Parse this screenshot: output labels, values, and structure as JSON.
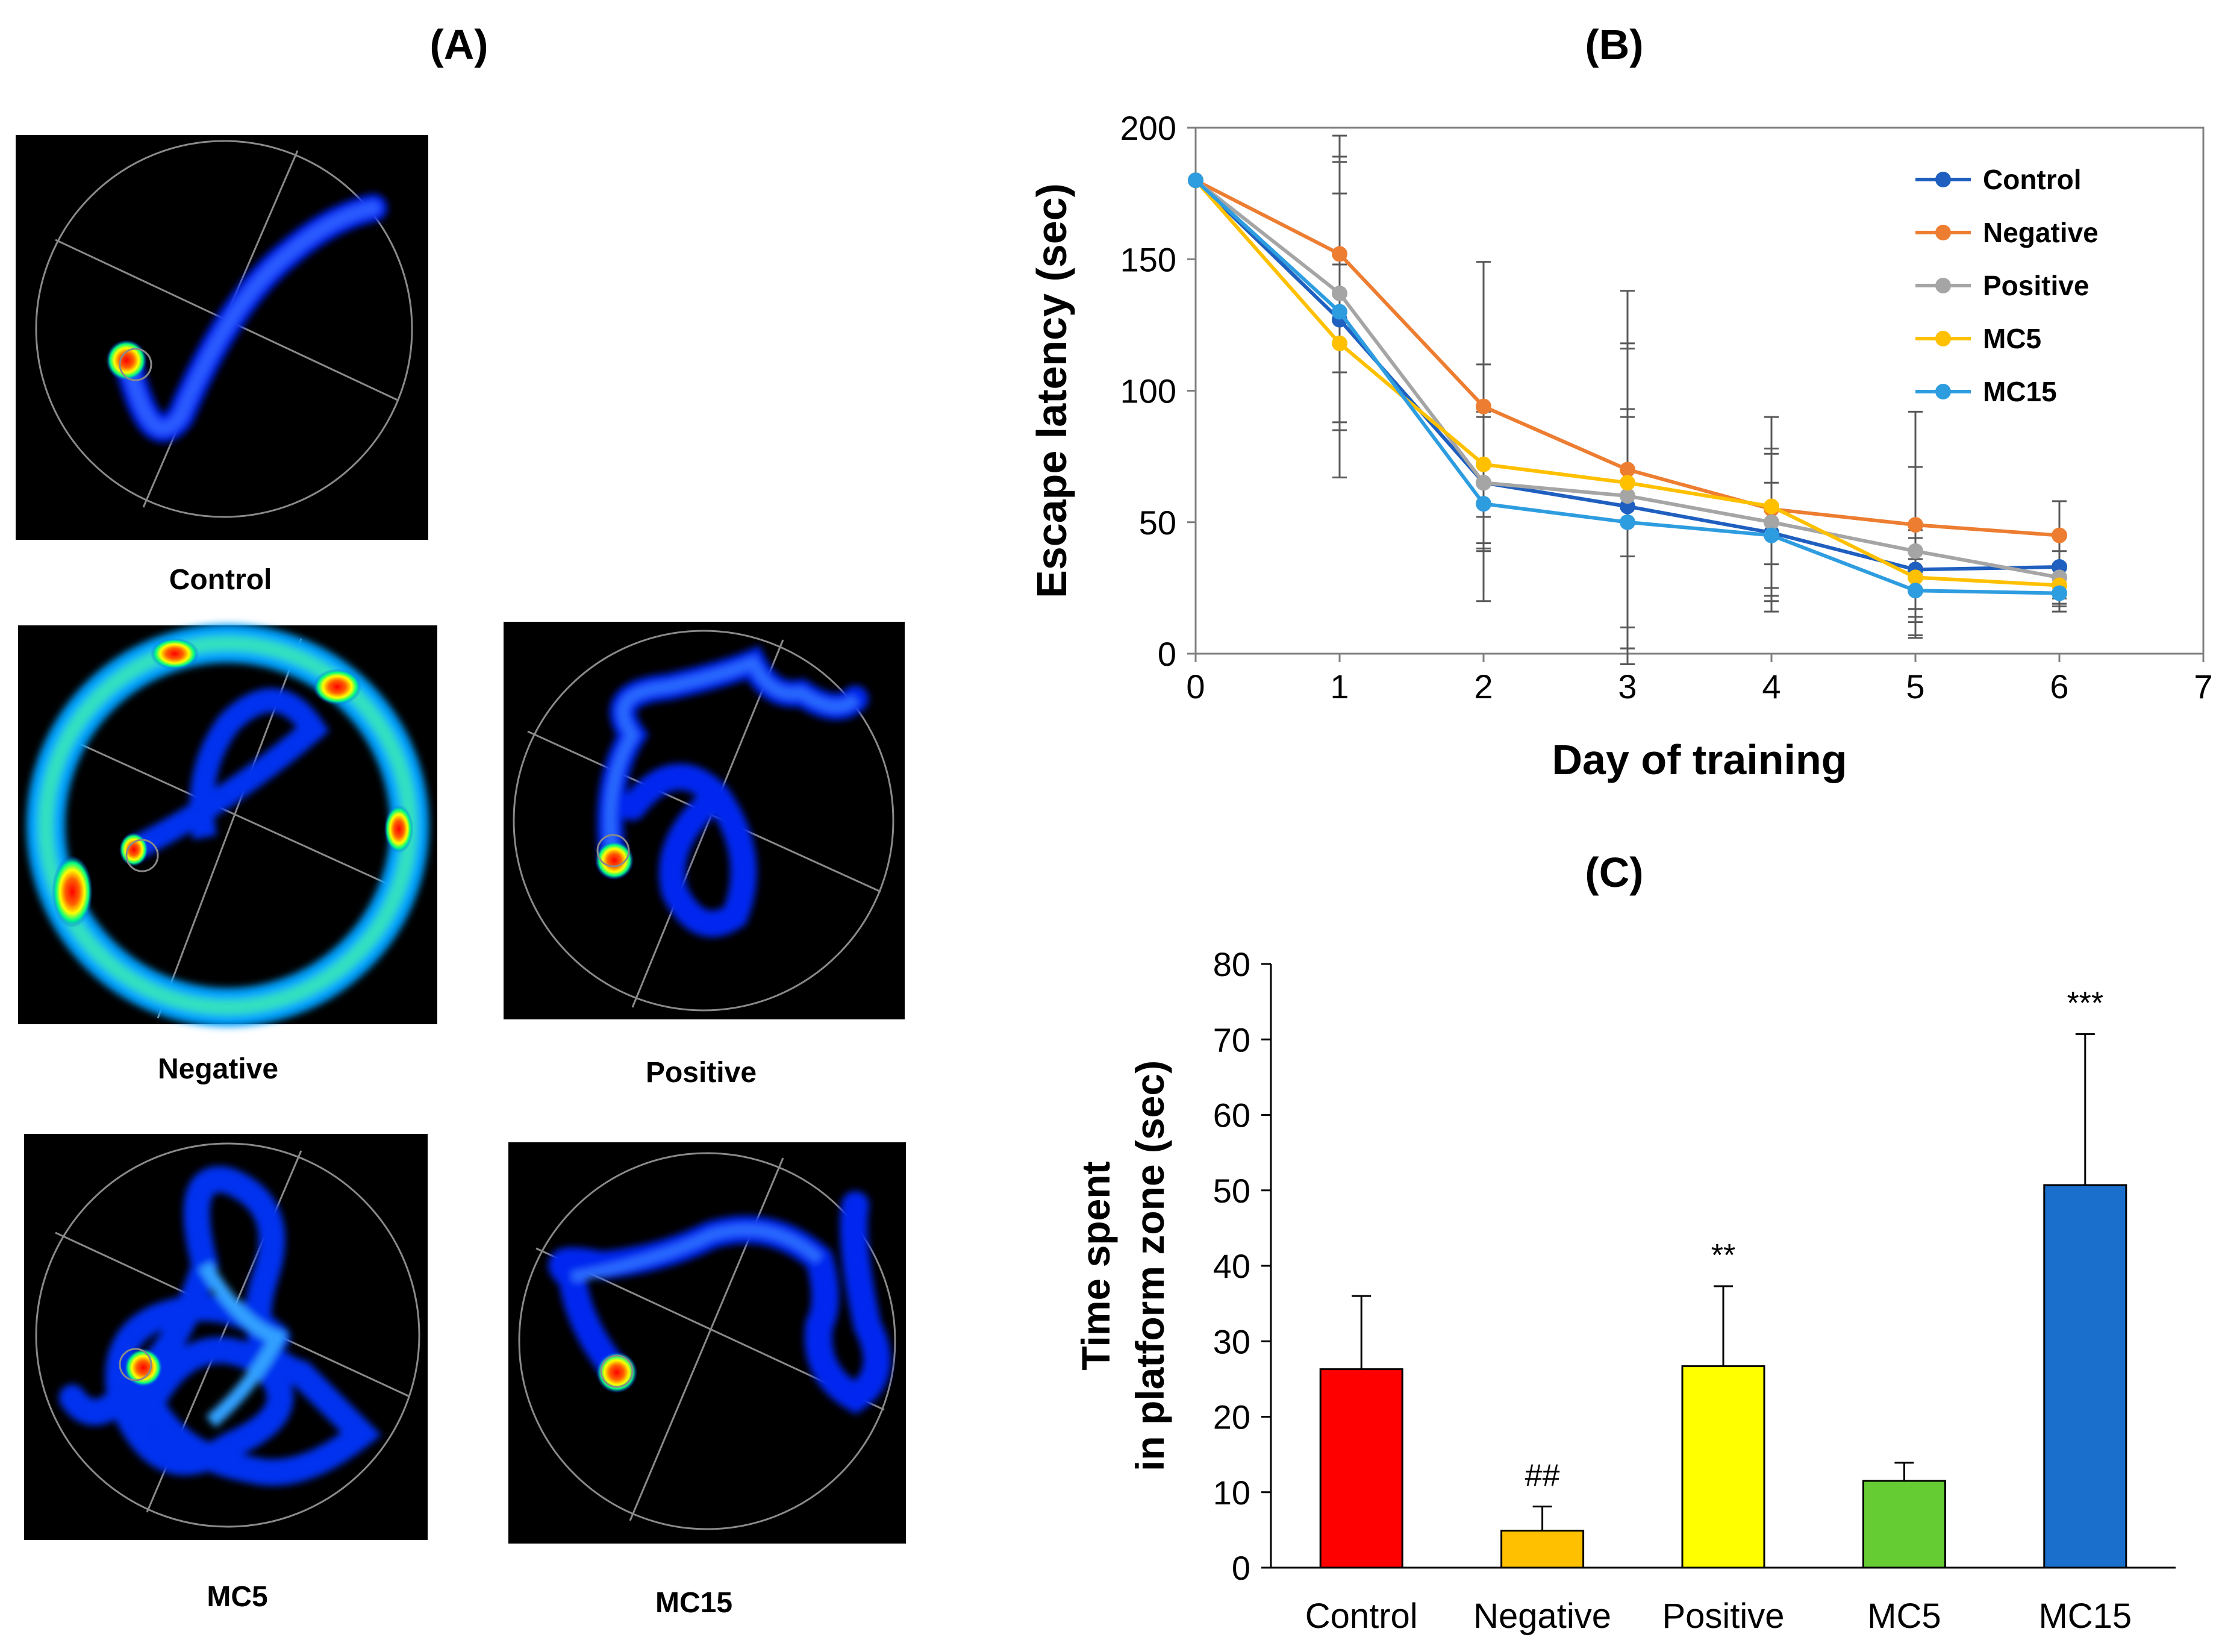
{
  "panel_labels": {
    "a": "(A)",
    "b": "(B)",
    "c": "(C)"
  },
  "heatmaps": [
    {
      "label": "Control",
      "pattern": "control"
    },
    {
      "label": "Negative",
      "pattern": "negative"
    },
    {
      "label": "Positive",
      "pattern": "positive"
    },
    {
      "label": "MC5",
      "pattern": "mc5"
    },
    {
      "label": "MC15",
      "pattern": "mc15"
    }
  ],
  "chart_data": [
    {
      "type": "line",
      "xlabel": "Day of training",
      "ylabel": "Escape latency (sec)",
      "x": [
        0,
        1,
        2,
        3,
        4,
        5,
        6
      ],
      "xlim": [
        0,
        7
      ],
      "ylim": [
        0,
        200
      ],
      "xticks": [
        "0",
        "1",
        "2",
        "3",
        "4",
        "5",
        "6",
        "7"
      ],
      "yticks": [
        "0",
        "50",
        "100",
        "150",
        "200"
      ],
      "legend_position": "top-right",
      "series": [
        {
          "name": "Control",
          "color": "#1f5fbf",
          "values": [
            180,
            127,
            65,
            56,
            46,
            32,
            33
          ],
          "errors": [
            0,
            60,
            45,
            60,
            30,
            15,
            12
          ]
        },
        {
          "name": "Negative",
          "color": "#ed7d31",
          "values": [
            180,
            152,
            94,
            70,
            55,
            49,
            45
          ],
          "errors": [
            0,
            45,
            55,
            68,
            35,
            43,
            13
          ]
        },
        {
          "name": "Positive",
          "color": "#a5a5a5",
          "values": [
            180,
            137,
            65,
            60,
            50,
            39,
            29
          ],
          "errors": [
            0,
            52,
            25,
            58,
            28,
            32,
            10
          ]
        },
        {
          "name": "MC5",
          "color": "#ffc000",
          "values": [
            180,
            118,
            72,
            65,
            56,
            29,
            26
          ],
          "errors": [
            0,
            30,
            20,
            28,
            22,
            15,
            8
          ]
        },
        {
          "name": "MC15",
          "color": "#2e9de0",
          "values": [
            180,
            130,
            57,
            50,
            45,
            24,
            23
          ],
          "errors": [
            0,
            45,
            15,
            40,
            20,
            12,
            7
          ]
        }
      ]
    },
    {
      "type": "bar",
      "ylabel_lines": [
        "Time spent",
        "in platform zone (sec)"
      ],
      "categories": [
        "Control",
        "Negative",
        "Positive",
        "MC5",
        "MC15"
      ],
      "values": [
        26.3,
        4.9,
        26.7,
        11.5,
        50.7
      ],
      "errors": [
        9.7,
        3.2,
        10.6,
        2.4,
        20.0
      ],
      "colors": [
        "#ff0000",
        "#ffc000",
        "#ffff00",
        "#66cc33",
        "#1a6fcc"
      ],
      "annotations": [
        "",
        "##",
        "**",
        "",
        "***"
      ],
      "ylim": [
        0,
        80
      ],
      "yticks": [
        "0",
        "10",
        "20",
        "30",
        "40",
        "50",
        "60",
        "70",
        "80"
      ]
    }
  ]
}
